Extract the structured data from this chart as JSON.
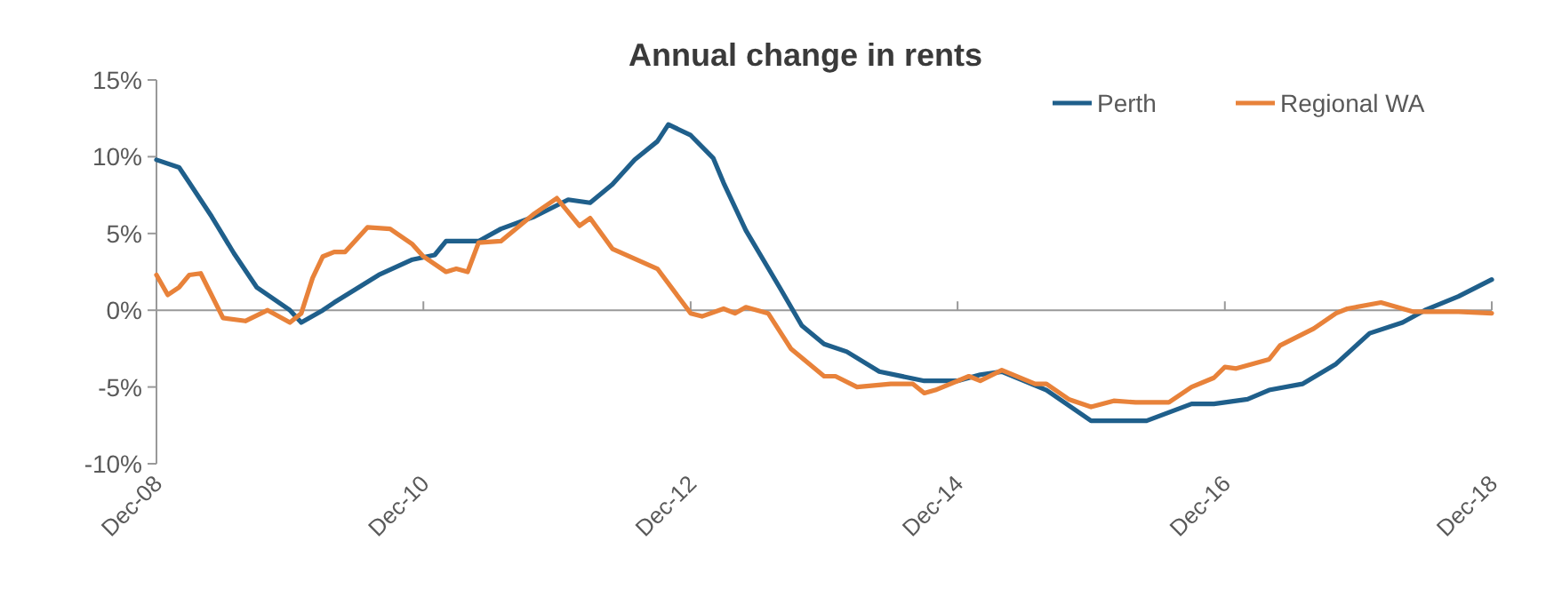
{
  "chart_data": {
    "type": "line",
    "title": "Annual change in rents",
    "xlim": [
      "2008-12",
      "2018-12"
    ],
    "xticks": [
      {
        "value": "2008-12",
        "label": "Dec-08"
      },
      {
        "value": "2010-12",
        "label": "Dec-10"
      },
      {
        "value": "2012-12",
        "label": "Dec-12"
      },
      {
        "value": "2014-12",
        "label": "Dec-14"
      },
      {
        "value": "2016-12",
        "label": "Dec-16"
      },
      {
        "value": "2018-12",
        "label": "Dec-18"
      }
    ],
    "ylim": [
      -10,
      15
    ],
    "yticks": [
      {
        "value": -10,
        "label": "-10%"
      },
      {
        "value": -5,
        "label": "-5%"
      },
      {
        "value": 0,
        "label": "0%"
      },
      {
        "value": 5,
        "label": "5%"
      },
      {
        "value": 10,
        "label": "10%"
      },
      {
        "value": 15,
        "label": "15%"
      }
    ],
    "legend": "top right",
    "marker": "none",
    "line_style": "solid",
    "series": [
      {
        "name": "Perth",
        "color": "#1f5f8b",
        "x": [
          "2008-12",
          "2009-02",
          "2009-03",
          "2009-05",
          "2009-07",
          "2009-09",
          "2009-12",
          "2010-01",
          "2010-03",
          "2010-04",
          "2010-06",
          "2010-08",
          "2010-11",
          "2011-01",
          "2011-02",
          "2011-05",
          "2011-07",
          "2011-10",
          "2012-01",
          "2012-03",
          "2012-05",
          "2012-07",
          "2012-09",
          "2012-10",
          "2012-12",
          "2013-02",
          "2013-03",
          "2013-05",
          "2013-08",
          "2013-10",
          "2013-12",
          "2014-02",
          "2014-05",
          "2014-09",
          "2014-12",
          "2015-02",
          "2015-04",
          "2015-08",
          "2015-12",
          "2016-05",
          "2016-09",
          "2016-11",
          "2017-02",
          "2017-04",
          "2017-07",
          "2017-10",
          "2018-01",
          "2018-04",
          "2018-06",
          "2018-09",
          "2018-12"
        ],
        "values": [
          9.8,
          9.3,
          8.3,
          6.1,
          3.7,
          1.5,
          0,
          -0.8,
          0,
          0.5,
          1.4,
          2.3,
          3.3,
          3.6,
          4.5,
          4.5,
          5.3,
          6.1,
          7.2,
          7.0,
          8.2,
          9.8,
          11,
          12.1,
          11.4,
          9.9,
          8.3,
          5.2,
          1.5,
          -1,
          -2.2,
          -2.7,
          -4.0,
          -4.6,
          -4.6,
          -4.2,
          -4.0,
          -5.2,
          -7.2,
          -7.2,
          -6.1,
          -6.1,
          -5.8,
          -5.2,
          -4.8,
          -3.5,
          -1.5,
          -0.8,
          0,
          0.9,
          2.0
        ]
      },
      {
        "name": "Regional WA",
        "color": "#e8823a",
        "x": [
          "2008-12",
          "2009-01",
          "2009-02",
          "2009-03",
          "2009-04",
          "2009-06",
          "2009-08",
          "2009-10",
          "2009-12",
          "2010-01",
          "2010-02",
          "2010-03",
          "2010-04",
          "2010-05",
          "2010-07",
          "2010-09",
          "2010-11",
          "2010-12",
          "2011-02",
          "2011-03",
          "2011-04",
          "2011-05",
          "2011-07",
          "2011-10",
          "2011-12",
          "2012-02",
          "2012-03",
          "2012-05",
          "2012-09",
          "2012-12",
          "2013-01",
          "2013-03",
          "2013-04",
          "2013-05",
          "2013-07",
          "2013-09",
          "2013-12",
          "2014-01",
          "2014-03",
          "2014-06",
          "2014-08",
          "2014-09",
          "2014-10",
          "2015-01",
          "2015-02",
          "2015-04",
          "2015-07",
          "2015-08",
          "2015-10",
          "2015-12",
          "2016-02",
          "2016-04",
          "2016-07",
          "2016-09",
          "2016-11",
          "2016-12",
          "2017-01",
          "2017-04",
          "2017-05",
          "2017-08",
          "2017-10",
          "2017-11",
          "2018-02",
          "2018-05",
          "2018-08",
          "2018-09",
          "2018-12"
        ],
        "values": [
          2.3,
          1.0,
          1.5,
          2.3,
          2.4,
          -0.5,
          -0.7,
          0,
          -0.8,
          -0.2,
          2.1,
          3.5,
          3.8,
          3.8,
          5.4,
          5.3,
          4.3,
          3.5,
          2.5,
          2.7,
          2.5,
          4.4,
          4.5,
          6.3,
          7.3,
          5.5,
          6.0,
          4.0,
          2.7,
          -0.2,
          -0.4,
          0.1,
          -0.2,
          0.2,
          -0.2,
          -2.5,
          -4.3,
          -4.3,
          -5.0,
          -4.8,
          -4.8,
          -5.4,
          -5.2,
          -4.3,
          -4.6,
          -3.9,
          -4.8,
          -4.8,
          -5.8,
          -6.3,
          -5.9,
          -6.0,
          -6.0,
          -5.0,
          -4.4,
          -3.7,
          -3.8,
          -3.2,
          -2.3,
          -1.2,
          -0.2,
          0.1,
          0.5,
          -0.1,
          -0.1,
          -0.1,
          -0.2
        ]
      }
    ]
  }
}
